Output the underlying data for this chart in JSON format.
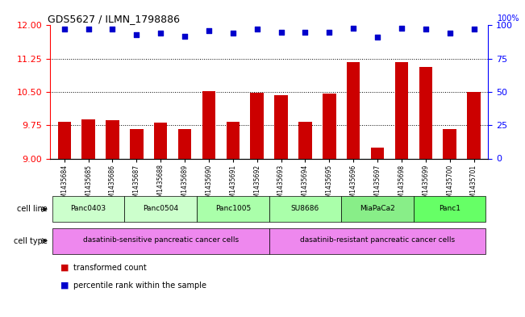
{
  "title": "GDS5627 / ILMN_1798886",
  "categories": [
    "GSM1435684",
    "GSM1435685",
    "GSM1435686",
    "GSM1435687",
    "GSM1435688",
    "GSM1435689",
    "GSM1435690",
    "GSM1435691",
    "GSM1435692",
    "GSM1435693",
    "GSM1435694",
    "GSM1435695",
    "GSM1435696",
    "GSM1435697",
    "GSM1435698",
    "GSM1435699",
    "GSM1435700",
    "GSM1435701"
  ],
  "bar_values": [
    9.82,
    9.88,
    9.86,
    9.67,
    9.8,
    9.67,
    10.52,
    9.83,
    10.48,
    10.43,
    9.83,
    10.47,
    11.17,
    9.25,
    11.17,
    11.07,
    9.67,
    10.5
  ],
  "bar_color": "#cc0000",
  "dot_values": [
    97,
    97,
    97,
    93,
    94,
    92,
    96,
    94,
    97,
    95,
    95,
    95,
    98,
    91,
    98,
    97,
    94,
    97
  ],
  "dot_color": "#0000cc",
  "ylim_left": [
    9,
    12
  ],
  "ylim_right": [
    0,
    100
  ],
  "yticks_left": [
    9,
    9.75,
    10.5,
    11.25,
    12
  ],
  "yticks_right": [
    0,
    25,
    50,
    75,
    100
  ],
  "hlines": [
    9.75,
    10.5,
    11.25
  ],
  "cell_lines": [
    {
      "label": "Panc0403",
      "start": 0,
      "end": 2
    },
    {
      "label": "Panc0504",
      "start": 3,
      "end": 5
    },
    {
      "label": "Panc1005",
      "start": 6,
      "end": 8
    },
    {
      "label": "SU8686",
      "start": 9,
      "end": 11
    },
    {
      "label": "MiaPaCa2",
      "start": 12,
      "end": 14
    },
    {
      "label": "Panc1",
      "start": 15,
      "end": 17
    }
  ],
  "cell_line_colors": [
    "#ccffcc",
    "#ccffcc",
    "#aaffaa",
    "#aaffaa",
    "#88ee88",
    "#66ff66"
  ],
  "cell_type_groups": [
    {
      "label": "dasatinib-sensitive pancreatic cancer cells",
      "start": 0,
      "end": 8
    },
    {
      "label": "dasatinib-resistant pancreatic cancer cells",
      "start": 9,
      "end": 17
    }
  ],
  "cell_type_color": "#ee88ee",
  "row_label_cell_line": "cell line",
  "row_label_cell_type": "cell type",
  "background_color": "#ffffff",
  "plot_bg_color": "#ffffff"
}
